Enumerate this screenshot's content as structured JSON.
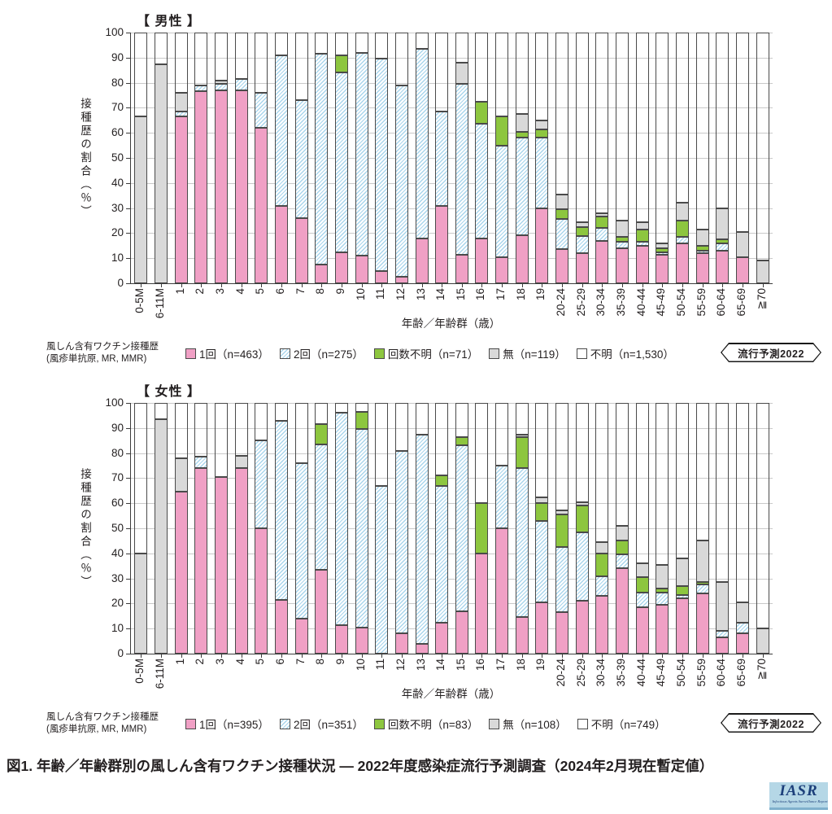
{
  "caption": "図1. 年齢／年齢群別の風しん含有ワクチン接種状況 ― 2022年度感染症流行予測調査（2024年2月現在暫定値）",
  "logo": {
    "text": "IASR",
    "subtext": "Infectious Agents Surveillance Report"
  },
  "colors": {
    "dose1": "#f0a0c5",
    "dose2_hatch": "#a9d5ec",
    "count_unknown": "#8dc63f",
    "none": "#d9d9d9",
    "unknown": "#ffffff",
    "segment_border": "#4a4a4a",
    "grid": "#c9c9c9",
    "axis": "#3c3c3c"
  },
  "charts": [
    {
      "title": "【 男性 】",
      "y_axis": {
        "label": "接種歴の割合（％）"
      },
      "x_axis": {
        "label": "年齢／年齢群（歳）"
      },
      "legend": {
        "heading_line1": "風しん含有ワクチン接種歴",
        "heading_line2": "(風疹単抗原, MR, MMR)",
        "items": [
          {
            "key": "dose1",
            "label": "1回（n=463）"
          },
          {
            "key": "dose2",
            "label": "2回（n=275）"
          },
          {
            "key": "count_unknown",
            "label": "回数不明（n=71）"
          },
          {
            "key": "none",
            "label": "無（n=119）"
          },
          {
            "key": "unknown",
            "label": "不明（n=1,530）"
          }
        ],
        "badge": "流行予測2022"
      }
    },
    {
      "title": "【 女性 】",
      "y_axis": {
        "label": "接種歴の割合（％）"
      },
      "x_axis": {
        "label": "年齢／年齢群（歳）"
      },
      "legend": {
        "heading_line1": "風しん含有ワクチン接種歴",
        "heading_line2": "(風疹単抗原, MR, MMR)",
        "items": [
          {
            "key": "dose1",
            "label": "1回（n=395）"
          },
          {
            "key": "dose2",
            "label": "2回（n=351）"
          },
          {
            "key": "count_unknown",
            "label": "回数不明（n=83）"
          },
          {
            "key": "none",
            "label": "無（n=108）"
          },
          {
            "key": "unknown",
            "label": "不明（n=749）"
          }
        ],
        "badge": "流行予測2022"
      }
    }
  ],
  "chart_data": [
    {
      "type": "bar",
      "stacked": true,
      "title": "【 男性 】",
      "xlabel": "年齢／年齢群（歳）",
      "ylabel": "接種歴の割合（％）",
      "ylim": [
        0,
        100
      ],
      "ytick_step": 10,
      "grid": true,
      "legend_position": "bottom",
      "categories": [
        "0-5M",
        "6-11M",
        "1",
        "2",
        "3",
        "4",
        "5",
        "6",
        "7",
        "8",
        "9",
        "10",
        "11",
        "12",
        "13",
        "14",
        "15",
        "16",
        "17",
        "18",
        "19",
        "20-24",
        "25-29",
        "30-34",
        "35-39",
        "40-44",
        "45-49",
        "50-54",
        "55-59",
        "60-64",
        "65-69",
        "≧70"
      ],
      "series": [
        {
          "name": "1回",
          "key": "dose1",
          "n": 463,
          "values": [
            0,
            0,
            66.5,
            76.5,
            77,
            77,
            62,
            31,
            26,
            7.5,
            12.5,
            11,
            5,
            2.5,
            18,
            31,
            11.5,
            18,
            10.5,
            19,
            30,
            13.5,
            12,
            17,
            14,
            15,
            11.5,
            16,
            12,
            13,
            10.5,
            0
          ]
        },
        {
          "name": "2回",
          "key": "dose2",
          "n": 275,
          "values": [
            0,
            0,
            2,
            2.5,
            2.5,
            4.5,
            14,
            60,
            47,
            84,
            71.5,
            81,
            84.5,
            76.5,
            75.5,
            37.5,
            68,
            45.5,
            44.5,
            39,
            28,
            12,
            7,
            5,
            2.5,
            1.5,
            1,
            2.5,
            1,
            3,
            0,
            0
          ]
        },
        {
          "name": "回数不明",
          "key": "count_unknown",
          "n": 71,
          "values": [
            0,
            0,
            0,
            0,
            0,
            0,
            0,
            0,
            0,
            0,
            7,
            0,
            0,
            0,
            0,
            0,
            0,
            9,
            11.5,
            2.5,
            3.5,
            4,
            3.5,
            4.5,
            2,
            5,
            1.5,
            6.5,
            2,
            1.5,
            0,
            0
          ]
        },
        {
          "name": "無",
          "key": "none",
          "n": 119,
          "values": [
            66.5,
            87.5,
            7.5,
            0,
            1.5,
            0,
            0,
            0,
            0,
            0,
            0,
            0,
            0,
            0,
            0,
            0,
            8.5,
            0,
            0,
            7,
            3.5,
            6,
            2,
            1.5,
            6.5,
            3,
            2,
            7,
            6.5,
            12.5,
            10,
            9
          ]
        },
        {
          "name": "不明",
          "key": "unknown",
          "n": 1530,
          "values": [
            33.5,
            12.5,
            24,
            21,
            19,
            18.5,
            24,
            9,
            27,
            8.5,
            9,
            8,
            10.5,
            21,
            6.5,
            31.5,
            12,
            27.5,
            33.5,
            32.5,
            35,
            64.5,
            75.5,
            72,
            75,
            75.5,
            84,
            68,
            78.5,
            70,
            79.5,
            91
          ]
        }
      ]
    },
    {
      "type": "bar",
      "stacked": true,
      "title": "【 女性 】",
      "xlabel": "年齢／年齢群（歳）",
      "ylabel": "接種歴の割合（％）",
      "ylim": [
        0,
        100
      ],
      "ytick_step": 10,
      "grid": true,
      "legend_position": "bottom",
      "categories": [
        "0-5M",
        "6-11M",
        "1",
        "2",
        "3",
        "4",
        "5",
        "6",
        "7",
        "8",
        "9",
        "10",
        "11",
        "12",
        "13",
        "14",
        "15",
        "16",
        "17",
        "18",
        "19",
        "20-24",
        "25-29",
        "30-34",
        "35-39",
        "40-44",
        "45-49",
        "50-54",
        "55-59",
        "60-64",
        "65-69",
        "≧70"
      ],
      "series": [
        {
          "name": "1回",
          "key": "dose1",
          "n": 395,
          "values": [
            0,
            0,
            64.5,
            74,
            70.5,
            74,
            50,
            21.5,
            14,
            33.5,
            11.5,
            10.5,
            0,
            8,
            4,
            12.5,
            17,
            40,
            50,
            14.5,
            20.5,
            16.5,
            21,
            23,
            34,
            18.5,
            19.5,
            22,
            24,
            6.5,
            8,
            0
          ]
        },
        {
          "name": "2回",
          "key": "dose2",
          "n": 351,
          "values": [
            0,
            0,
            0,
            4.5,
            0,
            0,
            35,
            71.5,
            62,
            50,
            84.5,
            79,
            67,
            73,
            83.5,
            54.5,
            66,
            0,
            25,
            59.5,
            32.5,
            26,
            27.5,
            8,
            5.5,
            6,
            5,
            1.5,
            3.5,
            2.5,
            4.5,
            0
          ]
        },
        {
          "name": "回数不明",
          "key": "count_unknown",
          "n": 83,
          "values": [
            0,
            0,
            0,
            0,
            0,
            0,
            0,
            0,
            0,
            8,
            0,
            7,
            0,
            0,
            0,
            4,
            3.5,
            20,
            0,
            12.5,
            7,
            13,
            10.5,
            9,
            5.5,
            6,
            1.5,
            3.5,
            1,
            0,
            0,
            0
          ]
        },
        {
          "name": "無",
          "key": "none",
          "n": 108,
          "values": [
            40,
            93.5,
            13.5,
            0,
            0,
            5,
            0,
            0,
            0,
            0,
            0,
            0,
            0,
            0,
            0,
            0,
            0,
            0,
            0,
            1,
            2.5,
            1.5,
            1.5,
            4.5,
            6,
            5.5,
            9.5,
            11,
            16.5,
            19.5,
            8,
            10
          ]
        },
        {
          "name": "不明",
          "key": "unknown",
          "n": 749,
          "values": [
            60,
            6.5,
            22,
            21.5,
            29.5,
            21,
            15,
            7,
            24,
            8.5,
            4,
            3.5,
            33,
            19,
            12.5,
            29,
            13.5,
            40,
            25,
            12.5,
            37.5,
            43,
            39.5,
            55.5,
            49,
            64,
            64.5,
            62,
            55,
            71.5,
            79.5,
            90
          ]
        }
      ]
    }
  ]
}
